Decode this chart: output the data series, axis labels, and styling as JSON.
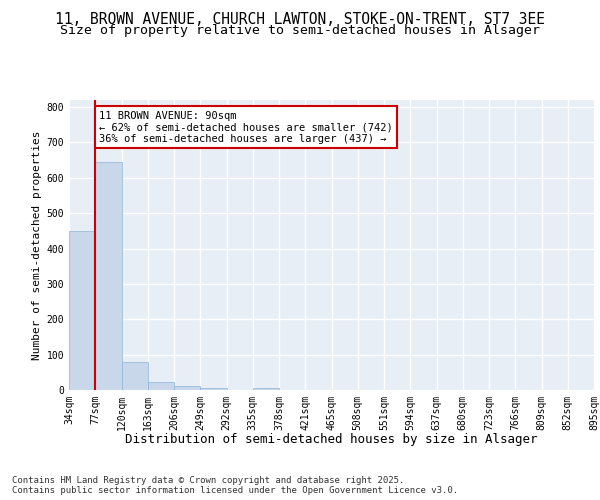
{
  "title_line1": "11, BROWN AVENUE, CHURCH LAWTON, STOKE-ON-TRENT, ST7 3EE",
  "title_line2": "Size of property relative to semi-detached houses in Alsager",
  "xlabel": "Distribution of semi-detached houses by size in Alsager",
  "ylabel": "Number of semi-detached properties",
  "bar_values": [
    450,
    645,
    80,
    22,
    10,
    5,
    0,
    5,
    0,
    0,
    0,
    0,
    0,
    0,
    0,
    0,
    0,
    0,
    0,
    0
  ],
  "categories": [
    "34sqm",
    "77sqm",
    "120sqm",
    "163sqm",
    "206sqm",
    "249sqm",
    "292sqm",
    "335sqm",
    "378sqm",
    "421sqm",
    "465sqm",
    "508sqm",
    "551sqm",
    "594sqm",
    "637sqm",
    "680sqm",
    "723sqm",
    "766sqm",
    "809sqm",
    "852sqm",
    "895sqm"
  ],
  "bar_color": "#c8d8ea",
  "bar_edge_color": "#8ab4d4",
  "vline_color": "#cc0000",
  "annotation_text": "11 BROWN AVENUE: 90sqm\n← 62% of semi-detached houses are smaller (742)\n36% of semi-detached houses are larger (437) →",
  "annotation_box_facecolor": "#ffffff",
  "annotation_box_edgecolor": "#cc0000",
  "ylim": [
    0,
    820
  ],
  "yticks": [
    0,
    100,
    200,
    300,
    400,
    500,
    600,
    700,
    800
  ],
  "background_color": "#e8eef6",
  "grid_color": "#ffffff",
  "footer_text": "Contains HM Land Registry data © Crown copyright and database right 2025.\nContains public sector information licensed under the Open Government Licence v3.0.",
  "title_fontsize": 10.5,
  "subtitle_fontsize": 9.5,
  "xlabel_fontsize": 9,
  "ylabel_fontsize": 8,
  "tick_fontsize": 7,
  "annotation_fontsize": 7.5,
  "footer_fontsize": 6.5
}
